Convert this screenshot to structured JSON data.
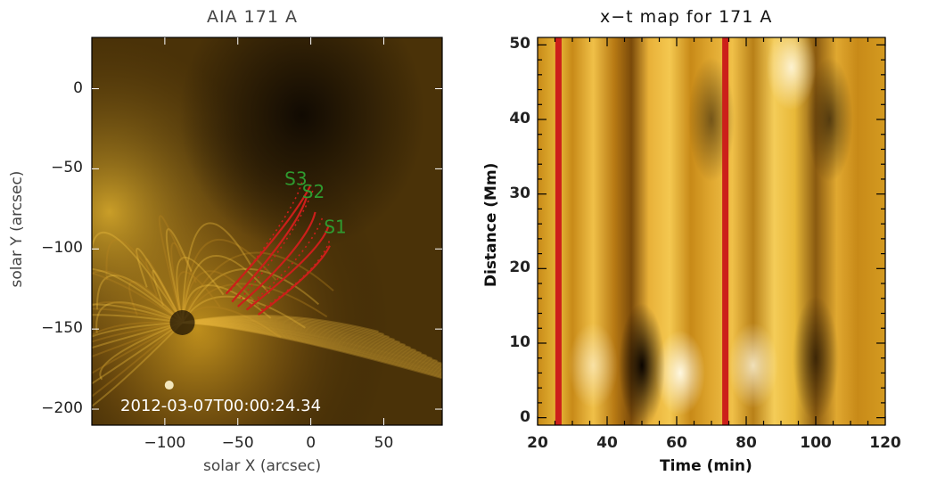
{
  "left_panel": {
    "title": "AIA 171 A",
    "xlabel": "solar X (arcsec)",
    "ylabel": "solar Y (arcsec)",
    "timestamp": "2012-03-07T00:00:24.34",
    "slit_labels": [
      "S3",
      "S2",
      "S1"
    ],
    "loop_color": "#cc1f1a",
    "label_color": "#2f9a2f"
  },
  "right_panel": {
    "title": "x−t map for 171 A",
    "xlabel": "Time (min)",
    "ylabel": "Distance (Mm)",
    "marker_color": "#cc1f1a"
  },
  "chart_data": [
    {
      "type": "heatmap",
      "title": "AIA 171 A",
      "xlabel": "solar X (arcsec)",
      "ylabel": "solar Y (arcsec)",
      "xlim": [
        -150,
        90
      ],
      "ylim": [
        -210,
        32
      ],
      "x_ticks": [
        -100,
        -50,
        0,
        50
      ],
      "y_ticks": [
        0,
        -50,
        -100,
        -150,
        -200
      ],
      "x_tick_labels": [
        "−100",
        "−50",
        "0",
        "50"
      ],
      "y_tick_labels": [
        "0",
        "−50",
        "−100",
        "−150",
        "−200"
      ],
      "annotations": [
        "S3",
        "S2",
        "S1",
        "2012-03-07T00:00:24.34"
      ],
      "colormap": "sdoaia171",
      "loops": [
        {
          "points": [
            [
              -58,
              -128
            ],
            [
              -30,
              -100
            ],
            [
              -8,
              -75
            ],
            [
              0,
              -60
            ]
          ]
        },
        {
          "points": [
            [
              -54,
              -133
            ],
            [
              -28,
              -106
            ],
            [
              -8,
              -83
            ],
            [
              -3,
              -68
            ]
          ]
        },
        {
          "points": [
            [
              -50,
              -136
            ],
            [
              -20,
              -112
            ],
            [
              0,
              -90
            ],
            [
              3,
              -77
            ]
          ]
        },
        {
          "points": [
            [
              -44,
              -138
            ],
            [
              -14,
              -116
            ],
            [
              8,
              -98
            ],
            [
              12,
              -86
            ]
          ]
        },
        {
          "points": [
            [
              -36,
              -141
            ],
            [
              -8,
              -122
            ],
            [
              8,
              -108
            ],
            [
              13,
              -98
            ]
          ]
        }
      ],
      "dotted_loops": [
        {
          "points": [
            [
              -55,
              -126
            ],
            [
              -28,
              -96
            ],
            [
              -10,
              -72
            ],
            [
              -6,
              -58
            ]
          ]
        },
        {
          "points": [
            [
              -48,
              -131
            ],
            [
              -18,
              -100
            ],
            [
              -3,
              -75
            ],
            [
              2,
              -62
            ]
          ]
        },
        {
          "points": [
            [
              -42,
              -135
            ],
            [
              -10,
              -110
            ],
            [
              5,
              -90
            ],
            [
              8,
              -80
            ]
          ]
        },
        {
          "points": [
            [
              -34,
              -138
            ],
            [
              -2,
              -118
            ],
            [
              10,
              -104
            ],
            [
              13,
              -94
            ]
          ]
        }
      ]
    },
    {
      "type": "heatmap",
      "title": "x−t map for 171 A",
      "xlabel": "Time (min)",
      "ylabel": "Distance (Mm)",
      "xlim": [
        20,
        120
      ],
      "ylim": [
        -1,
        51
      ],
      "x_ticks": [
        20,
        40,
        60,
        80,
        100,
        120
      ],
      "y_ticks": [
        0,
        10,
        20,
        30,
        40,
        50
      ],
      "colormap": "sdoaia171",
      "vertical_markers": [
        26,
        74
      ],
      "bright_features": [
        {
          "t": 93,
          "d": 47,
          "strength": 0.9
        },
        {
          "t": 61,
          "d": 6,
          "strength": 1.0
        },
        {
          "t": 82,
          "d": 7,
          "strength": 0.8
        },
        {
          "t": 36,
          "d": 7,
          "strength": 0.6
        }
      ],
      "dark_features": [
        {
          "t": 50,
          "d": 7,
          "strength": 1.0
        },
        {
          "t": 100,
          "d": 8,
          "strength": 0.6
        },
        {
          "t": 104,
          "d": 40,
          "strength": 0.6
        },
        {
          "t": 70,
          "d": 40,
          "strength": 0.5
        }
      ]
    }
  ]
}
